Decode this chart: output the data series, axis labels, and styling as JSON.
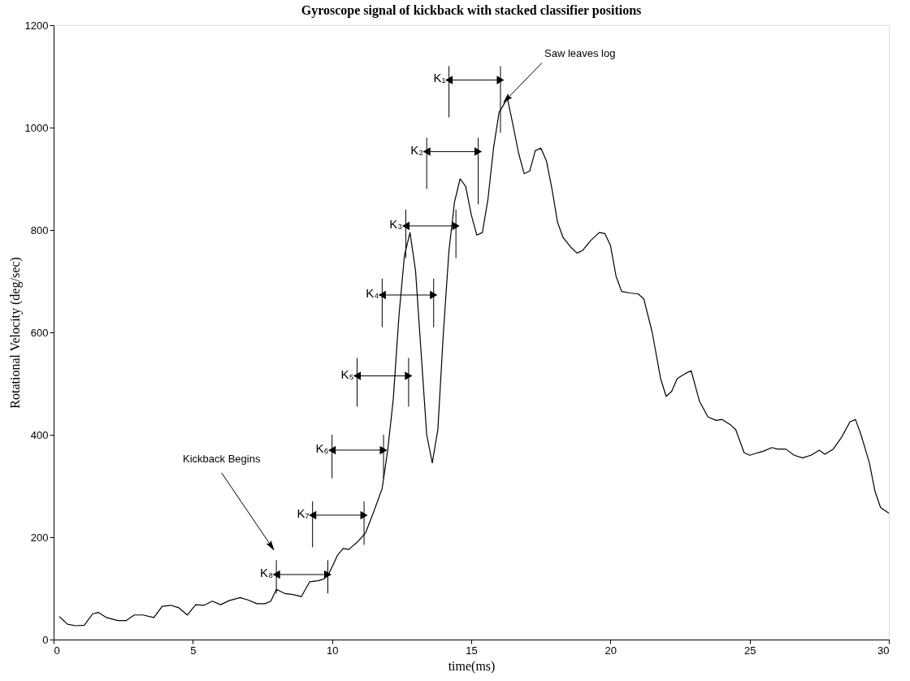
{
  "chart_data": {
    "type": "line",
    "title": "Gyroscope signal of kickback with stacked classifier positions",
    "xlabel": "time(ms)",
    "ylabel": "Rotational Velocity (deg/sec)",
    "xlim": [
      0,
      30
    ],
    "xticks": [
      0,
      5,
      10,
      15,
      20,
      25,
      30
    ],
    "ylim": [
      0,
      1200
    ],
    "yticks": [
      0,
      200,
      400,
      600,
      800,
      1000,
      1200
    ],
    "grid": false,
    "legend": false,
    "marker": "none",
    "line_style": "solid",
    "series": [
      {
        "color": "#000000",
        "x": [
          0.2,
          0.5,
          0.8,
          1.1,
          1.4,
          1.6,
          1.9,
          2.3,
          2.6,
          2.9,
          3.2,
          3.6,
          3.9,
          4.2,
          4.5,
          4.8,
          5.1,
          5.4,
          5.7,
          6.0,
          6.3,
          6.7,
          7.0,
          7.3,
          7.6,
          7.8,
          8.0,
          8.3,
          8.6,
          8.9,
          9.2,
          9.5,
          9.7,
          9.9,
          10.2,
          10.4,
          10.6,
          10.9,
          11.2,
          11.5,
          11.8,
          12.0,
          12.2,
          12.4,
          12.6,
          12.8,
          13.0,
          13.2,
          13.4,
          13.6,
          13.8,
          14.0,
          14.2,
          14.4,
          14.6,
          14.8,
          15.0,
          15.2,
          15.4,
          15.6,
          15.8,
          16.0,
          16.3,
          16.5,
          16.7,
          16.9,
          17.1,
          17.3,
          17.5,
          17.7,
          17.9,
          18.1,
          18.3,
          18.6,
          18.8,
          19.0,
          19.3,
          19.6,
          19.8,
          20.0,
          20.2,
          20.4,
          20.7,
          21.0,
          21.2,
          21.5,
          21.8,
          22.0,
          22.2,
          22.4,
          22.7,
          22.9,
          23.2,
          23.5,
          23.8,
          24.0,
          24.3,
          24.5,
          24.8,
          25.0,
          25.3,
          25.5,
          25.8,
          26.0,
          26.3,
          26.6,
          26.9,
          27.2,
          27.5,
          27.7,
          28.0,
          28.3,
          28.6,
          28.8,
          29.0,
          29.3,
          29.5,
          29.7,
          30.0
        ],
        "values": [
          45,
          30,
          27,
          28,
          50,
          53,
          43,
          37,
          37,
          48,
          48,
          43,
          65,
          67,
          62,
          48,
          68,
          67,
          75,
          68,
          76,
          82,
          77,
          70,
          70,
          75,
          98,
          90,
          88,
          84,
          113,
          115,
          118,
          130,
          165,
          178,
          176,
          190,
          208,
          250,
          295,
          370,
          470,
          630,
          750,
          795,
          720,
          560,
          400,
          345,
          410,
          600,
          760,
          855,
          900,
          885,
          830,
          790,
          795,
          860,
          960,
          1030,
          1057,
          1005,
          950,
          910,
          915,
          955,
          960,
          935,
          880,
          815,
          785,
          765,
          755,
          760,
          780,
          795,
          793,
          770,
          710,
          680,
          677,
          675,
          665,
          600,
          510,
          475,
          485,
          510,
          520,
          525,
          465,
          435,
          428,
          430,
          420,
          410,
          365,
          360,
          365,
          368,
          375,
          372,
          372,
          360,
          355,
          360,
          370,
          362,
          372,
          395,
          425,
          430,
          400,
          345,
          290,
          258,
          247
        ]
      },
      {
        "name": "K₁",
        "color": "#000000",
        "marker": "triangle",
        "x": [
          14.2,
          16.05
        ],
        "values": [
          1093,
          1093
        ],
        "errors": [
          [
            1020,
            1120
          ],
          [
            990,
            1120
          ]
        ]
      },
      {
        "name": "K₂",
        "color": "#000000",
        "marker": "triangle",
        "x": [
          13.4,
          15.25
        ],
        "values": [
          953,
          953
        ],
        "errors": [
          [
            880,
            980
          ],
          [
            850,
            980
          ]
        ]
      },
      {
        "name": "K₃",
        "color": "#000000",
        "marker": "triangle",
        "x": [
          12.65,
          14.45
        ],
        "values": [
          808,
          808
        ],
        "errors": [
          [
            745,
            840
          ],
          [
            745,
            840
          ]
        ]
      },
      {
        "name": "K₄",
        "color": "#000000",
        "marker": "triangle",
        "x": [
          11.8,
          13.65
        ],
        "values": [
          673,
          673
        ],
        "errors": [
          [
            610,
            705
          ],
          [
            610,
            705
          ]
        ]
      },
      {
        "name": "K₅",
        "color": "#000000",
        "marker": "triangle",
        "x": [
          10.9,
          12.75
        ],
        "values": [
          515,
          515
        ],
        "errors": [
          [
            455,
            550
          ],
          [
            455,
            550
          ]
        ]
      },
      {
        "name": "K₆",
        "color": "#000000",
        "marker": "triangle",
        "x": [
          10.0,
          11.85
        ],
        "values": [
          370,
          370
        ],
        "errors": [
          [
            315,
            400
          ],
          [
            315,
            400
          ]
        ]
      },
      {
        "name": "K₇",
        "color": "#000000",
        "marker": "triangle",
        "x": [
          9.3,
          11.15
        ],
        "values": [
          243,
          243
        ],
        "errors": [
          [
            180,
            270
          ],
          [
            185,
            270
          ]
        ]
      },
      {
        "name": "K₈",
        "color": "#000000",
        "marker": "triangle",
        "x": [
          8.0,
          9.85
        ],
        "values": [
          127,
          127
        ],
        "errors": [
          [
            90,
            155
          ],
          [
            90,
            155
          ]
        ]
      }
    ],
    "annotations": [
      {
        "text": "Kickback Begins",
        "x": 7.8,
        "y": 184
      },
      {
        "text": "Saw leaves log",
        "x": 16.3,
        "y": 1057
      }
    ]
  }
}
